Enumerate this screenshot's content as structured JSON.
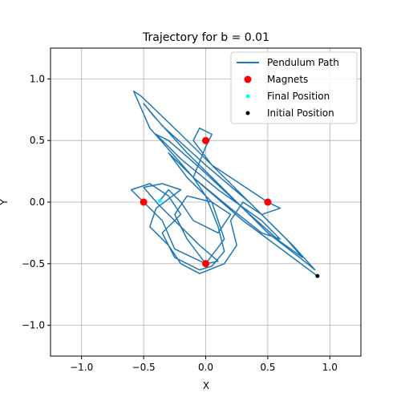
{
  "chart_data": {
    "type": "line",
    "title": "Trajectory for b = 0.01",
    "xlabel": "X",
    "ylabel": "Y",
    "xlim": [
      -1.25,
      1.25
    ],
    "ylim": [
      -1.25,
      1.25
    ],
    "xticks": [
      -1.0,
      -0.5,
      0.0,
      0.5,
      1.0
    ],
    "yticks": [
      -1.0,
      -0.5,
      0.0,
      0.5,
      1.0
    ],
    "xtick_labels": [
      "−1.0",
      "−0.5",
      "0.0",
      "0.5",
      "1.0"
    ],
    "ytick_labels": [
      "−1.0",
      "−0.5",
      "0.0",
      "0.5",
      "1.0"
    ],
    "grid": true,
    "legend_placement": "top-right",
    "series": [
      {
        "name": "Pendulum Path",
        "kind": "line",
        "color": "#1f77b4"
      },
      {
        "name": "Magnets",
        "kind": "scatter",
        "color": "#ff0000",
        "points": [
          [
            0.0,
            0.5
          ],
          [
            -0.5,
            0.0
          ],
          [
            0.5,
            0.0
          ],
          [
            0.0,
            -0.5
          ]
        ]
      },
      {
        "name": "Final Position",
        "kind": "scatter",
        "color": "#00ffff",
        "points": [
          [
            -0.37,
            0.01
          ]
        ]
      },
      {
        "name": "Initial Position",
        "kind": "scatter",
        "color": "#000000",
        "points": [
          [
            0.9,
            -0.6
          ]
        ]
      }
    ],
    "path_points": [
      [
        0.9,
        -0.6
      ],
      [
        0.7,
        -0.45
      ],
      [
        0.3,
        -0.15
      ],
      [
        -0.1,
        0.2
      ],
      [
        -0.45,
        0.6
      ],
      [
        -0.58,
        0.9
      ],
      [
        -0.52,
        0.86
      ],
      [
        -0.2,
        0.55
      ],
      [
        0.1,
        0.25
      ],
      [
        0.4,
        -0.05
      ],
      [
        0.7,
        -0.35
      ],
      [
        0.88,
        -0.55
      ],
      [
        0.82,
        -0.5
      ],
      [
        0.5,
        -0.25
      ],
      [
        0.2,
        0.05
      ],
      [
        -0.15,
        0.4
      ],
      [
        -0.42,
        0.7
      ],
      [
        -0.5,
        0.8
      ],
      [
        -0.35,
        0.62
      ],
      [
        0.0,
        0.3
      ],
      [
        0.35,
        0.0
      ],
      [
        0.65,
        -0.3
      ],
      [
        0.78,
        -0.45
      ],
      [
        0.6,
        -0.32
      ],
      [
        0.3,
        -0.05
      ],
      [
        -0.05,
        0.28
      ],
      [
        -0.3,
        0.5
      ],
      [
        -0.4,
        0.55
      ],
      [
        -0.2,
        0.35
      ],
      [
        0.1,
        0.1
      ],
      [
        0.45,
        -0.15
      ],
      [
        0.6,
        -0.3
      ],
      [
        0.45,
        -0.25
      ],
      [
        0.2,
        -0.05
      ],
      [
        -0.1,
        0.2
      ],
      [
        -0.3,
        0.4
      ],
      [
        -0.15,
        0.2
      ],
      [
        0.05,
        0.0
      ],
      [
        0.15,
        -0.3
      ],
      [
        0.0,
        -0.5
      ],
      [
        -0.25,
        -0.38
      ],
      [
        -0.35,
        -0.15
      ],
      [
        -0.5,
        0.0
      ],
      [
        -0.6,
        0.1
      ],
      [
        -0.45,
        0.15
      ],
      [
        -0.3,
        0.05
      ],
      [
        -0.2,
        -0.1
      ],
      [
        -0.35,
        -0.25
      ],
      [
        -0.25,
        -0.45
      ],
      [
        -0.05,
        -0.55
      ],
      [
        0.05,
        -0.52
      ],
      [
        0.15,
        -0.4
      ],
      [
        0.1,
        -0.2
      ],
      [
        0.0,
        0.05
      ],
      [
        -0.1,
        0.2
      ],
      [
        0.0,
        0.45
      ],
      [
        0.05,
        0.55
      ],
      [
        -0.05,
        0.6
      ],
      [
        -0.1,
        0.5
      ],
      [
        0.05,
        0.3
      ],
      [
        0.2,
        0.2
      ],
      [
        0.35,
        0.1
      ],
      [
        0.5,
        0.0
      ],
      [
        0.6,
        -0.05
      ],
      [
        0.45,
        -0.1
      ],
      [
        0.3,
        0.0
      ],
      [
        0.2,
        -0.15
      ],
      [
        0.25,
        -0.35
      ],
      [
        0.15,
        -0.5
      ],
      [
        -0.05,
        -0.58
      ],
      [
        -0.2,
        -0.5
      ],
      [
        -0.3,
        -0.35
      ],
      [
        -0.45,
        -0.2
      ],
      [
        -0.4,
        -0.05
      ],
      [
        -0.2,
        0.1
      ],
      [
        -0.35,
        0.15
      ],
      [
        -0.5,
        0.12
      ],
      [
        -0.38,
        -0.02
      ],
      [
        -0.2,
        -0.2
      ],
      [
        -0.05,
        -0.35
      ],
      [
        0.1,
        -0.48
      ],
      [
        0.0,
        -0.5
      ],
      [
        -0.15,
        -0.3
      ],
      [
        -0.25,
        -0.1
      ],
      [
        -0.15,
        0.05
      ],
      [
        0.05,
        0.0
      ],
      [
        0.2,
        -0.1
      ],
      [
        0.1,
        -0.25
      ],
      [
        -0.1,
        -0.15
      ],
      [
        -0.2,
        0.0
      ],
      [
        -0.3,
        0.1
      ],
      [
        -0.37,
        0.01
      ]
    ]
  }
}
